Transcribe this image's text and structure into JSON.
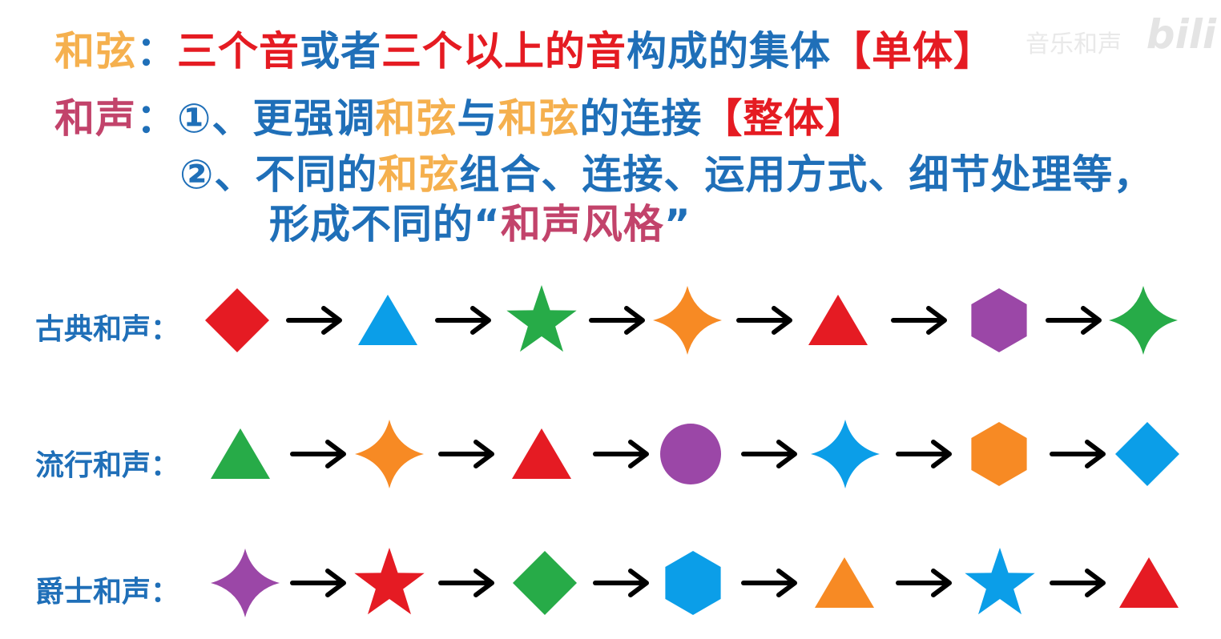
{
  "colors": {
    "gold": "#f5b04e",
    "red": "#e51b22",
    "blue": "#1f6fb8",
    "rose": "#c2436b",
    "shape_red": "#e51b23",
    "shape_blue": "#0b9ee8",
    "shape_green": "#27ab48",
    "shape_orange": "#f78a24",
    "shape_purple": "#9b47a7"
  },
  "header": {
    "line1": [
      {
        "text": "和弦",
        "color": "gold"
      },
      {
        "text": "：",
        "color": "blue"
      },
      {
        "text": "三个音",
        "color": "red"
      },
      {
        "text": "或者",
        "color": "blue"
      },
      {
        "text": "三个以上的音",
        "color": "red"
      },
      {
        "text": "构成的集体",
        "color": "blue"
      },
      {
        "text": "【单体】",
        "color": "red"
      }
    ],
    "line2": [
      {
        "text": "和声",
        "color": "rose"
      },
      {
        "text": "：",
        "color": "blue"
      },
      {
        "text": "①、更强调",
        "color": "blue"
      },
      {
        "text": "和弦",
        "color": "gold"
      },
      {
        "text": "与",
        "color": "blue"
      },
      {
        "text": "和弦",
        "color": "gold"
      },
      {
        "text": "的连接",
        "color": "blue"
      },
      {
        "text": "【整体】",
        "color": "red"
      }
    ],
    "line3": [
      {
        "text": "②、不同的",
        "color": "blue"
      },
      {
        "text": "和弦",
        "color": "gold"
      },
      {
        "text": "组合、连接、运用方式、细节处理等，",
        "color": "blue"
      }
    ],
    "line4": [
      {
        "text": "形成不同的“",
        "color": "blue"
      },
      {
        "text": "和声风格",
        "color": "rose"
      },
      {
        "text": "”",
        "color": "blue"
      }
    ]
  },
  "rows": [
    {
      "label": "古典和声：",
      "shapes": [
        {
          "icon": "diamond-icon",
          "color": "shape_red"
        },
        {
          "icon": "triangle-icon",
          "color": "shape_blue"
        },
        {
          "icon": "star-icon",
          "color": "shape_green"
        },
        {
          "icon": "four-point-star-icon",
          "color": "shape_orange"
        },
        {
          "icon": "triangle-icon",
          "color": "shape_red"
        },
        {
          "icon": "hexagon-icon",
          "color": "shape_purple"
        },
        {
          "icon": "four-point-star-icon",
          "color": "shape_green"
        }
      ]
    },
    {
      "label": "流行和声：",
      "shapes": [
        {
          "icon": "triangle-icon",
          "color": "shape_green"
        },
        {
          "icon": "four-point-star-icon",
          "color": "shape_orange"
        },
        {
          "icon": "triangle-icon",
          "color": "shape_red"
        },
        {
          "icon": "circle-icon",
          "color": "shape_purple"
        },
        {
          "icon": "four-point-star-icon",
          "color": "shape_blue"
        },
        {
          "icon": "hexagon-icon",
          "color": "shape_orange"
        },
        {
          "icon": "diamond-icon",
          "color": "shape_blue"
        }
      ]
    },
    {
      "label": "爵士和声：",
      "shapes": [
        {
          "icon": "four-point-star-icon",
          "color": "shape_purple"
        },
        {
          "icon": "star-icon",
          "color": "shape_red"
        },
        {
          "icon": "diamond-icon",
          "color": "shape_green"
        },
        {
          "icon": "hexagon-icon",
          "color": "shape_blue"
        },
        {
          "icon": "triangle-icon",
          "color": "shape_orange"
        },
        {
          "icon": "star-icon",
          "color": "shape_blue"
        },
        {
          "icon": "triangle-icon",
          "color": "shape_red"
        }
      ]
    }
  ],
  "watermark": "音乐和声"
}
